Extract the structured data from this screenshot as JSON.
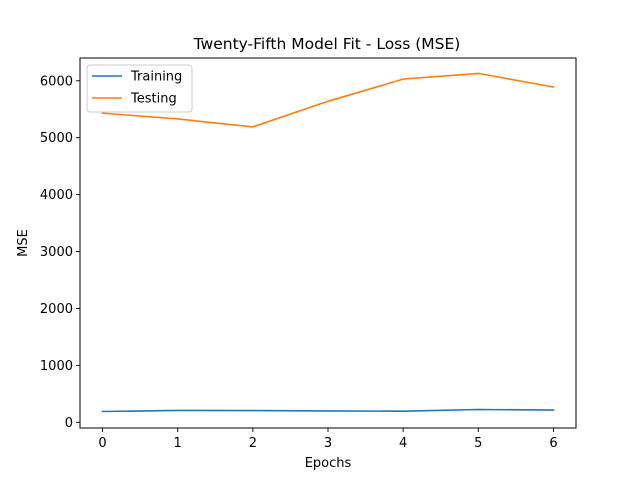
{
  "chart_data": {
    "type": "line",
    "title": "Twenty-Fifth Model Fit - Loss (MSE)",
    "xlabel": "Epochs",
    "ylabel": "MSE",
    "x": [
      0,
      1,
      2,
      3,
      4,
      5,
      6
    ],
    "xticks": [
      0,
      1,
      2,
      3,
      4,
      5,
      6
    ],
    "yticks": [
      0,
      1000,
      2000,
      3000,
      4000,
      5000,
      6000
    ],
    "xlim": [
      -0.3,
      6.3
    ],
    "ylim": [
      -100,
      6400
    ],
    "grid": false,
    "legend_position": "top-left",
    "series": [
      {
        "name": "Training",
        "color": "#1f77b4",
        "values": [
          190,
          210,
          205,
          200,
          195,
          225,
          215
        ]
      },
      {
        "name": "Testing",
        "color": "#ff7f0e",
        "values": [
          5430,
          5330,
          5190,
          5640,
          6030,
          6130,
          5890
        ]
      }
    ]
  }
}
